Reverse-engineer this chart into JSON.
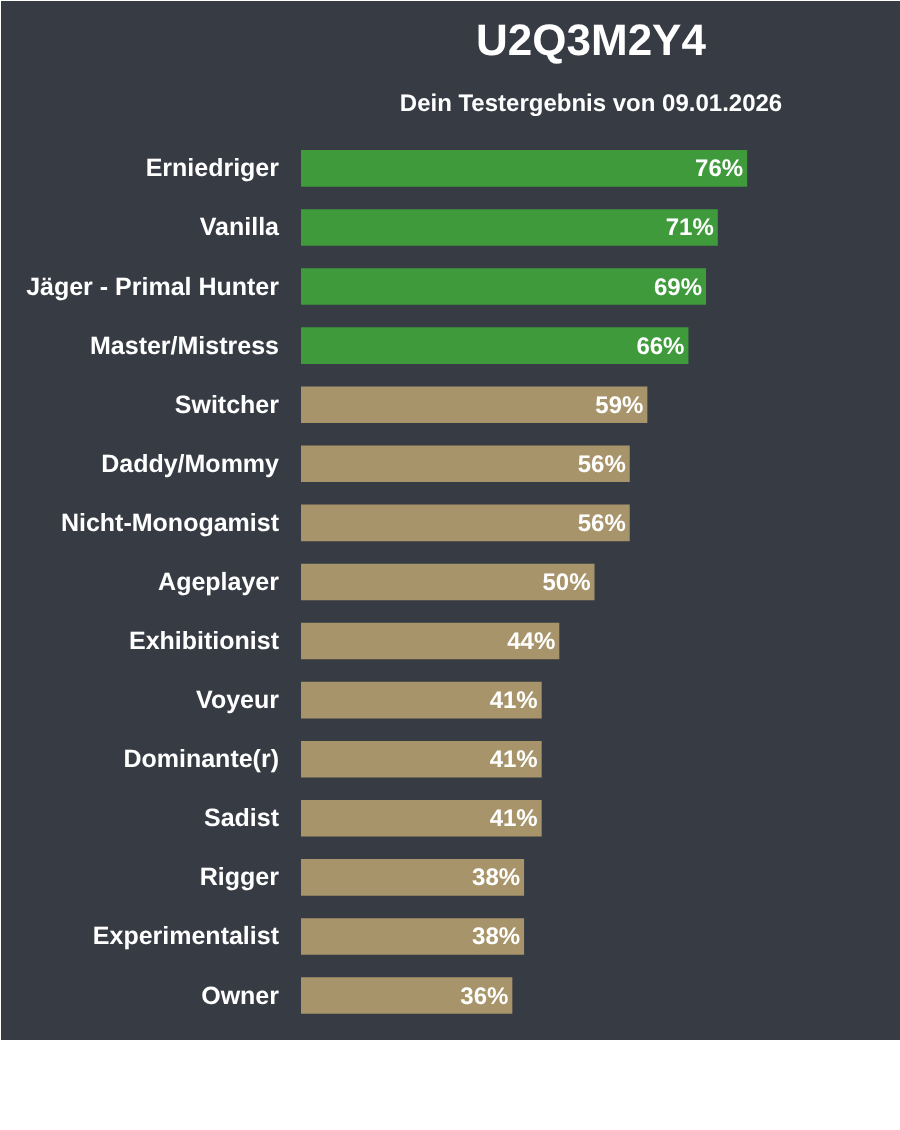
{
  "chart_data": {
    "type": "bar",
    "orientation": "horizontal",
    "title": "U2Q3M2Y4",
    "subtitle": "Dein Testergebnis von 09.01.2026",
    "categories": [
      "Erniedriger",
      "Vanilla",
      "Jäger - Primal Hunter",
      "Master/Mistress",
      "Switcher",
      "Daddy/Mommy",
      "Nicht-Monogamist",
      "Ageplayer",
      "Exhibitionist",
      "Voyeur",
      "Dominante(r)",
      "Sadist",
      "Rigger",
      "Experimentalist",
      "Owner"
    ],
    "values": [
      76,
      71,
      69,
      66,
      59,
      56,
      56,
      50,
      44,
      41,
      41,
      41,
      38,
      38,
      36
    ],
    "colors": [
      "#3f9a3c",
      "#3f9a3c",
      "#3f9a3c",
      "#3f9a3c",
      "#a8946a",
      "#a8946a",
      "#a8946a",
      "#a8946a",
      "#a8946a",
      "#a8946a",
      "#a8946a",
      "#a8946a",
      "#a8946a",
      "#a8946a",
      "#a8946a"
    ],
    "value_labels": [
      "76%",
      "71%",
      "69%",
      "66%",
      "59%",
      "56%",
      "56%",
      "50%",
      "44%",
      "41%",
      "41%",
      "41%",
      "38%",
      "38%",
      "36%"
    ],
    "grid": false
  }
}
